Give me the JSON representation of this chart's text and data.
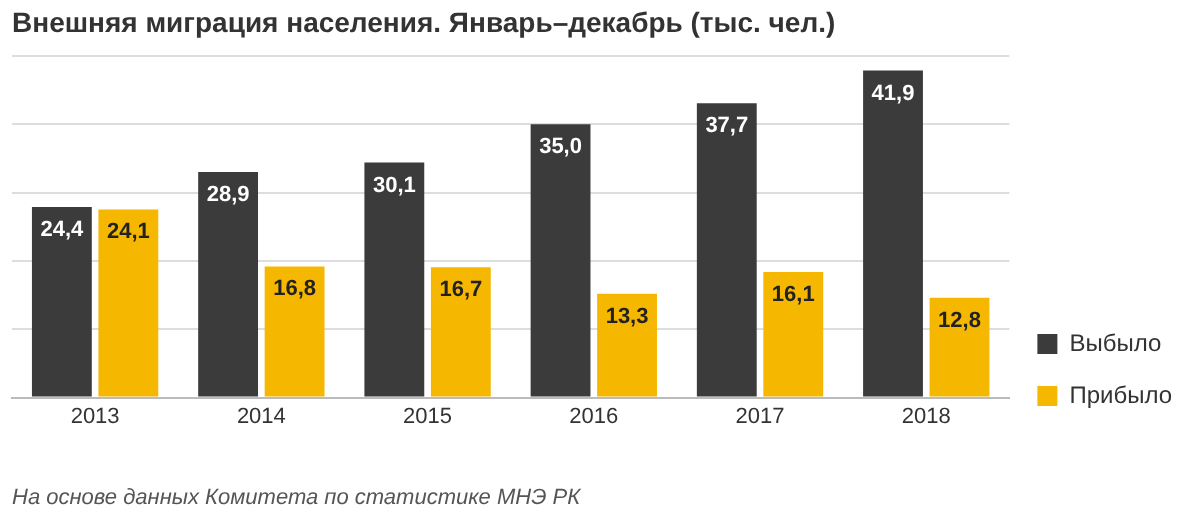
{
  "chart_data": {
    "type": "bar",
    "title": "Внешняя миграция населения. Январь–декабрь (тыс. чел.)",
    "categories": [
      "2013",
      "2014",
      "2015",
      "2016",
      "2017",
      "2018"
    ],
    "series": [
      {
        "name": "Выбыло",
        "color": "#3b3b3b",
        "values": [
          24.4,
          28.9,
          30.1,
          35.0,
          37.7,
          41.9
        ],
        "value_labels": [
          "24,4",
          "28,9",
          "30,1",
          "35,0",
          "37,7",
          "41,9"
        ]
      },
      {
        "name": "Прибыло",
        "color": "#f5b700",
        "values": [
          24.1,
          16.8,
          16.7,
          13.3,
          16.1,
          12.8
        ],
        "value_labels": [
          "24,1",
          "16,8",
          "16,7",
          "13,3",
          "16,1",
          "12,8"
        ]
      }
    ],
    "ylim": [
      0,
      43.75
    ],
    "yticks": [
      {
        "value": 0,
        "label": null
      },
      {
        "value": 8.75,
        "label": null
      },
      {
        "value": 17.5,
        "label": null
      },
      {
        "value": 26.25,
        "label": null
      },
      {
        "value": 35,
        "label": null
      },
      {
        "value": 43.75,
        "label": null
      }
    ],
    "grid": "y",
    "tick_labels": "x",
    "legend": "right",
    "annotations": [
      "На основе данных Комитета по статистике МНЭ РК"
    ]
  }
}
